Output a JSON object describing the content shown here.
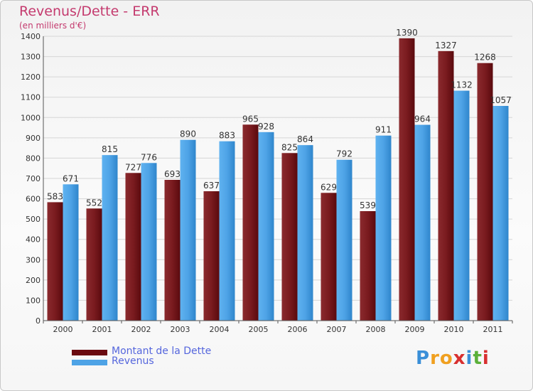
{
  "header": {
    "title": "Revenus/Dette - ERR",
    "unit_note": "(en milliers d'€)"
  },
  "chart_data": {
    "type": "bar",
    "title": "Revenus/Dette - ERR",
    "ylabel": "(en milliers d'€)",
    "xlabel": "",
    "categories": [
      "2000",
      "2001",
      "2002",
      "2003",
      "2004",
      "2005",
      "2006",
      "2007",
      "2008",
      "2009",
      "2010",
      "2011"
    ],
    "ylim": [
      0,
      1400
    ],
    "yticks": [
      0,
      100,
      200,
      300,
      400,
      500,
      600,
      700,
      800,
      900,
      1000,
      1100,
      1200,
      1300,
      1400
    ],
    "grid": true,
    "legend_position": "bottom-left",
    "series": [
      {
        "name": "Montant de la Dette",
        "color": "#7a1b1f",
        "values": [
          583,
          552,
          727,
          693,
          637,
          965,
          825,
          629,
          539,
          1390,
          1327,
          1268
        ]
      },
      {
        "name": "Revenus",
        "color": "#4ea3e6",
        "values": [
          671,
          815,
          776,
          890,
          883,
          928,
          864,
          792,
          911,
          964,
          1132,
          1057
        ]
      }
    ]
  },
  "legend": {
    "items": [
      {
        "label": "Montant de la Dette",
        "color": "#6a0a10"
      },
      {
        "label": "Revenus",
        "color": "#4ea3e6"
      }
    ]
  },
  "logo": {
    "letters": [
      {
        "ch": "P",
        "color": "#3a8fd8"
      },
      {
        "ch": "r",
        "color": "#f0a020"
      },
      {
        "ch": "o",
        "color": "#f0a020"
      },
      {
        "ch": "x",
        "color": "#d83030"
      },
      {
        "ch": "i",
        "color": "#3a8fd8"
      },
      {
        "ch": "t",
        "color": "#5bb03a"
      },
      {
        "ch": "i",
        "color": "#d83030"
      }
    ]
  }
}
